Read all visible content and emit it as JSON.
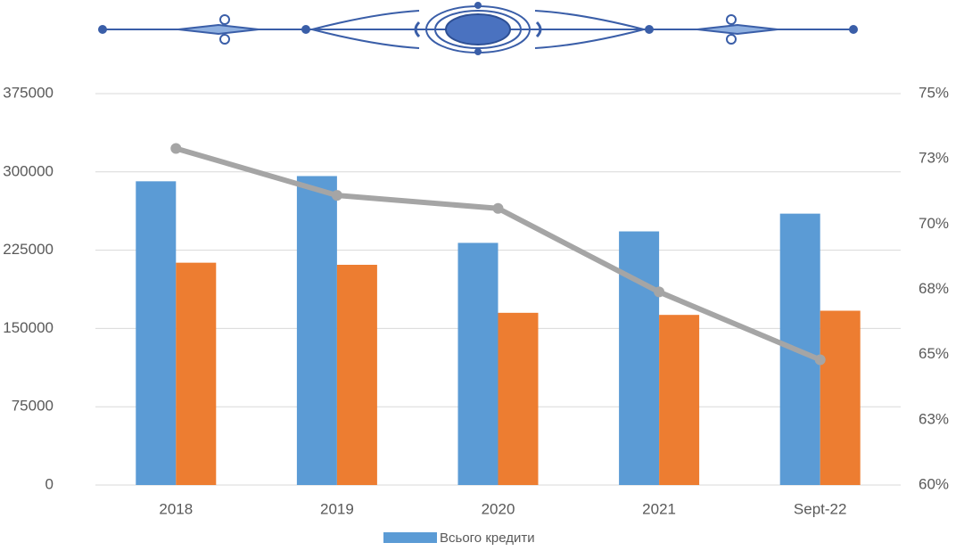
{
  "chart_data": {
    "type": "bar",
    "categories": [
      "2018",
      "2019",
      "2020",
      "2021",
      "Sept-22"
    ],
    "series": [
      {
        "name": "Всього кредити",
        "color": "#5b9bd5",
        "values": [
          291000,
          296000,
          232000,
          243000,
          260000
        ]
      },
      {
        "color": "#ed7d31",
        "values": [
          213000,
          211000,
          165000,
          163000,
          167000
        ]
      },
      {
        "type": "line",
        "axis": "y2",
        "color": "#a5a5a5",
        "values": [
          72.9,
          71.1,
          70.6,
          67.4,
          64.8
        ]
      }
    ],
    "ylim": [
      0,
      375000
    ],
    "yticks": [
      0,
      75000,
      150000,
      225000,
      300000,
      375000
    ],
    "y2lim": [
      60,
      75
    ],
    "y2ticks": [
      {
        "value": 60,
        "label": "60%"
      },
      {
        "value": 62.5,
        "label": "63%"
      },
      {
        "value": 65,
        "label": "65%"
      },
      {
        "value": 67.5,
        "label": "68%"
      },
      {
        "value": 70,
        "label": "70%"
      },
      {
        "value": 72.5,
        "label": "73%"
      },
      {
        "value": 75,
        "label": "75%"
      }
    ],
    "grid": true,
    "legend": "bottom"
  }
}
